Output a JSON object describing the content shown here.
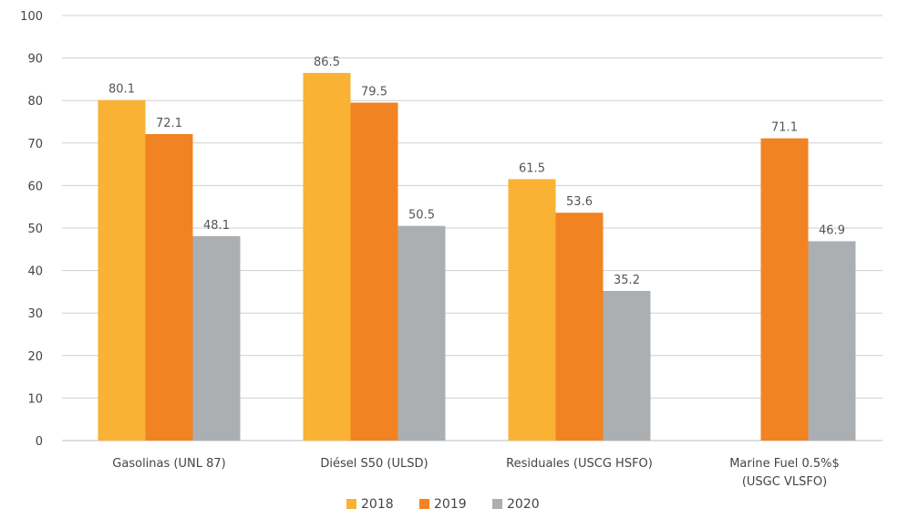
{
  "chart_data": {
    "type": "bar",
    "title": "",
    "xlabel": "",
    "ylabel": "",
    "ylim": [
      0,
      100
    ],
    "yticks": [
      0,
      10,
      20,
      30,
      40,
      50,
      60,
      70,
      80,
      90,
      100
    ],
    "grid": true,
    "legend_position": "bottom-center",
    "categories": [
      [
        "Gasolinas (UNL 87)"
      ],
      [
        "Diésel S50 (ULSD)"
      ],
      [
        "Residuales (USCG HSFO)"
      ],
      [
        "Marine Fuel 0.5%$",
        "(USGC VLSFO)"
      ]
    ],
    "series": [
      {
        "name": "2018",
        "color": "#F9B233",
        "values": [
          80.1,
          86.5,
          61.5,
          null
        ]
      },
      {
        "name": "2019",
        "color": "#F28322",
        "values": [
          72.1,
          79.5,
          53.6,
          71.1
        ]
      },
      {
        "name": "2020",
        "color": "#ACAFB2",
        "values": [
          48.1,
          50.5,
          35.2,
          46.9
        ]
      }
    ]
  }
}
